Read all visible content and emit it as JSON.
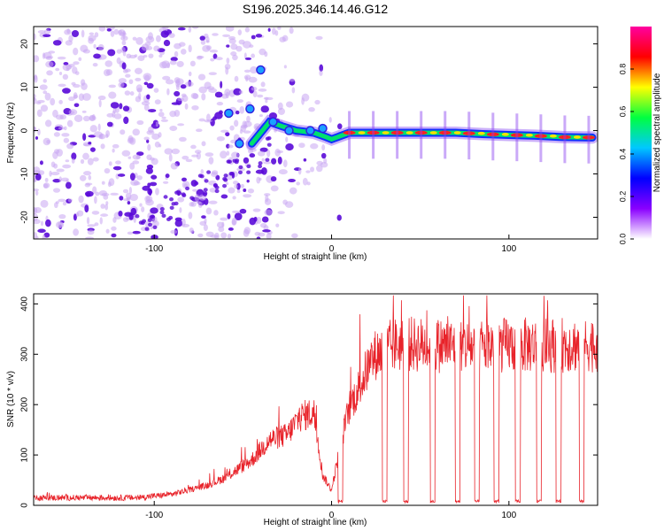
{
  "title": "S196.2025.346.14.46.G12",
  "colors": {
    "snr_line": "#e8232a",
    "axis": "#000000",
    "blob_strong": "#5a0ad8",
    "blob_weak": "#c9a6f3"
  },
  "chart_data": [
    {
      "type": "heatmap",
      "title": "S196.2025.346.14.46.G12",
      "xlabel": "Height of straight line (km)",
      "ylabel": "Frequency (Hz)",
      "xlim": [
        -168,
        150
      ],
      "ylim": [
        -25,
        24
      ],
      "xticks": [
        -100,
        0,
        100
      ],
      "yticks": [
        -20,
        -10,
        0,
        10,
        20
      ],
      "colorbar": {
        "label": "Normalized spectral amplitude",
        "range": [
          0,
          1
        ],
        "ticks": [
          "0.0",
          "0.2",
          "0.4",
          "0.6",
          "0.8"
        ],
        "stops": [
          "#ffffff",
          "#8a00ff",
          "#0000ff",
          "#00c8ff",
          "#00ff40",
          "#ffff00",
          "#ff0000",
          "#ff00a0"
        ]
      },
      "ridge": {
        "description": "dominant frequency trace",
        "x": [
          -45,
          -35,
          -28,
          -20,
          -10,
          -3,
          0,
          10,
          25,
          40,
          55,
          70,
          85,
          100,
          115,
          130,
          147
        ],
        "y": [
          -3,
          2,
          1,
          0,
          -0.5,
          -1.5,
          -2,
          -0.5,
          -0.5,
          -0.5,
          -0.5,
          -0.5,
          -0.8,
          -1,
          -1.2,
          -1.5,
          -1.6
        ]
      },
      "noise_region_x": [
        -168,
        -35
      ]
    },
    {
      "type": "line",
      "xlabel": "Height of straight line (km)",
      "ylabel": "SNR (10 * v/v)",
      "xlim": [
        -168,
        150
      ],
      "ylim": [
        0,
        420
      ],
      "xticks": [
        -100,
        0,
        100
      ],
      "yticks": [
        0,
        100,
        200,
        300,
        400
      ],
      "series": [
        {
          "name": "SNR",
          "baseline_x": [
            -168,
            -140,
            -110,
            -90,
            -70,
            -60,
            -45,
            -35,
            -25,
            -18,
            -10,
            -5,
            0,
            5,
            10,
            15,
            20,
            25,
            30,
            35,
            40,
            60,
            80,
            100,
            120,
            150
          ],
          "baseline_y": [
            15,
            15,
            15,
            22,
            40,
            55,
            90,
            130,
            140,
            175,
            185,
            60,
            30,
            120,
            195,
            230,
            270,
            300,
            310,
            318,
            320,
            318,
            315,
            318,
            318,
            320
          ],
          "dropout_x": [
            5,
            30,
            42,
            57,
            71,
            82,
            93,
            105,
            117,
            128,
            141
          ],
          "dropout_y": 5
        }
      ]
    }
  ]
}
